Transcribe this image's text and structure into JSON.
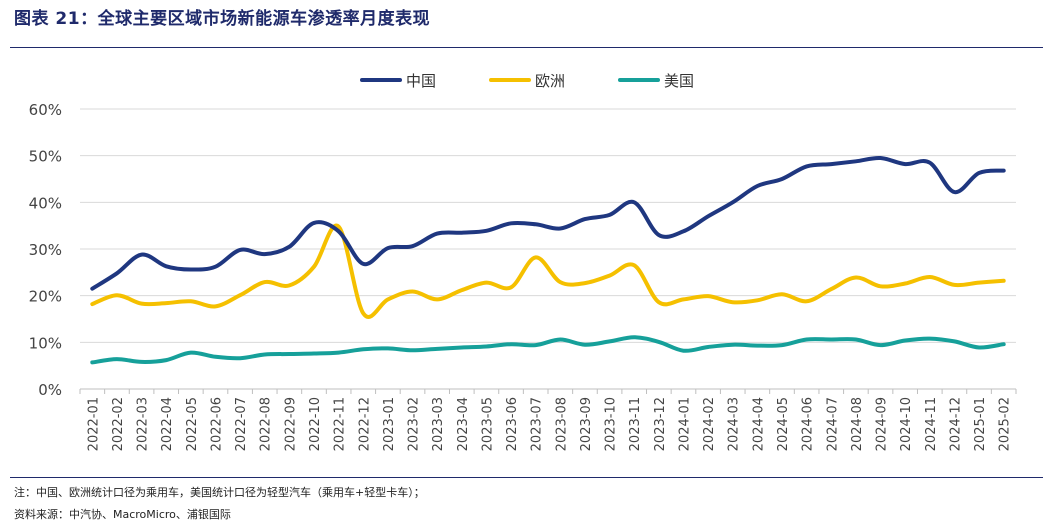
{
  "figure": {
    "label": "图表 21：",
    "title": "全球主要区域市场新能源车渗透率月度表现"
  },
  "notes": {
    "note": "注：中国、欧洲统计口径为乘用车，美国统计口径为轻型汽车（乘用车+轻型卡车）；",
    "source": "资料来源：中汽协、MacroMicro、浦银国际"
  },
  "colors": {
    "china": "#1f3780",
    "europe": "#f5c000",
    "usa": "#16a09a",
    "grid": "#d9d9d9",
    "axis_text": "#444444"
  },
  "chart_data": {
    "type": "line",
    "title": "全球主要区域市场新能源车渗透率月度表现",
    "xlabel": "",
    "ylabel": "",
    "ylim": [
      0,
      60
    ],
    "yticks": [
      0,
      10,
      20,
      30,
      40,
      50,
      60
    ],
    "ytick_labels": [
      "0%",
      "10%",
      "20%",
      "30%",
      "40%",
      "50%",
      "60%"
    ],
    "grid": true,
    "legend_position": "top-center",
    "categories": [
      "2022-01",
      "2022-02",
      "2022-03",
      "2022-04",
      "2022-05",
      "2022-06",
      "2022-07",
      "2022-08",
      "2022-09",
      "2022-10",
      "2022-11",
      "2022-12",
      "2023-01",
      "2023-02",
      "2023-03",
      "2023-04",
      "2023-05",
      "2023-06",
      "2023-07",
      "2023-08",
      "2023-09",
      "2023-10",
      "2023-11",
      "2023-12",
      "2024-01",
      "2024-02",
      "2024-03",
      "2024-04",
      "2024-05",
      "2024-06",
      "2024-07",
      "2024-08",
      "2024-09",
      "2024-10",
      "2024-11",
      "2024-12",
      "2025-01",
      "2025-02"
    ],
    "series": [
      {
        "name": "中国",
        "color_key": "china",
        "values": [
          21.5,
          24.8,
          28.8,
          26.3,
          25.6,
          26.2,
          29.8,
          28.9,
          30.5,
          35.6,
          33.8,
          26.8,
          30.2,
          30.6,
          33.3,
          33.5,
          33.9,
          35.5,
          35.3,
          34.4,
          36.4,
          37.3,
          40.0,
          33.0,
          33.8,
          37.0,
          40.0,
          43.5,
          45.0,
          47.7,
          48.2,
          48.8,
          49.5,
          48.2,
          48.5,
          42.2,
          46.3,
          46.8
        ]
      },
      {
        "name": "欧洲",
        "color_key": "europe",
        "values": [
          18.2,
          20.1,
          18.3,
          18.4,
          18.8,
          17.7,
          20.1,
          22.9,
          22.2,
          26.2,
          34.8,
          16.2,
          19.2,
          20.9,
          19.2,
          21.2,
          22.8,
          21.8,
          28.2,
          22.9,
          22.7,
          24.3,
          26.5,
          18.6,
          19.2,
          19.9,
          18.6,
          19.0,
          20.3,
          18.8,
          21.4,
          23.9,
          22.0,
          22.6,
          24.0,
          22.3,
          22.8,
          23.2
        ]
      },
      {
        "name": "美国",
        "color_key": "usa",
        "values": [
          5.7,
          6.4,
          5.8,
          6.2,
          7.8,
          6.9,
          6.6,
          7.4,
          7.5,
          7.6,
          7.8,
          8.5,
          8.7,
          8.3,
          8.6,
          8.9,
          9.1,
          9.6,
          9.4,
          10.6,
          9.5,
          10.2,
          11.1,
          10.1,
          8.2,
          9.0,
          9.5,
          9.3,
          9.4,
          10.6,
          10.6,
          10.6,
          9.4,
          10.4,
          10.8,
          10.2,
          8.9,
          9.6
        ]
      }
    ]
  }
}
